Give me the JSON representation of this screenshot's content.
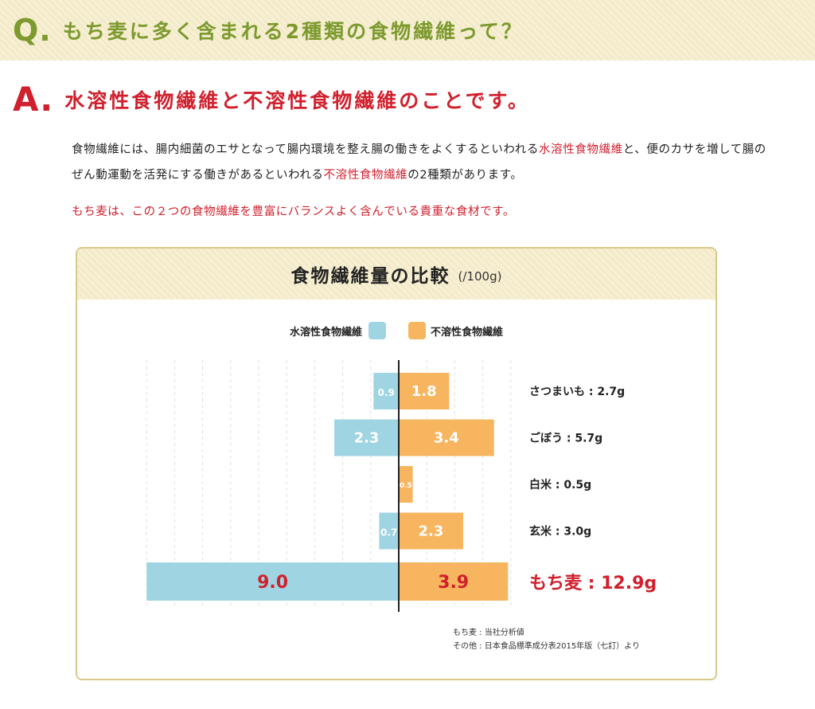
{
  "question": {
    "mark": "Q.",
    "text": "もち麦に多く含まれる2種類の食物繊維って？"
  },
  "answer": {
    "mark": "A.",
    "text": "水溶性食物繊維と不溶性食物繊維のことです。"
  },
  "paragraph1": {
    "part1": "食物繊維には、腸内細菌のエサとなって腸内環境を整え腸の働きをよくするといわれる",
    "highlight1": "水溶性食物繊維",
    "part2": "と、便のカサを増して腸のぜん動運動を活発にする働きがあるといわれる",
    "highlight2": "不溶性食物繊維",
    "part3": "の2種類があります。"
  },
  "paragraph2": "もち麦は、この２つの食物繊維を豊富にバランスよく含んでいる貴重な食材です。",
  "chart_data": {
    "type": "bar",
    "orientation": "horizontal-diverging",
    "title": "食物繊維量の比較",
    "unit": "(/100g)",
    "legend": [
      "水溶性食物繊維",
      "不溶性食物繊維"
    ],
    "legend_placement": "top-center",
    "categories": [
      "さつまいも",
      "ごぼう",
      "白米",
      "玄米",
      "もち麦"
    ],
    "category_labels": [
      "さつまいも : 2.7g",
      "ごぼう : 5.7g",
      "白米 : 0.5g",
      "玄米 : 3.0g",
      "もち麦 : 12.9g"
    ],
    "series": [
      {
        "name": "水溶性食物繊維",
        "values": [
          0.9,
          2.3,
          0,
          0.7,
          9.0
        ],
        "labels": [
          "0.9",
          "2.3",
          "",
          "0.7",
          "9.0"
        ]
      },
      {
        "name": "不溶性食物繊維",
        "values": [
          1.8,
          3.4,
          0.5,
          2.3,
          3.9
        ],
        "labels": [
          "1.8",
          "3.4",
          "0.5",
          "2.3",
          "3.9"
        ]
      }
    ],
    "highlight_category": "もち麦",
    "grid": true
  },
  "colors": {
    "soluble": "#9fd4e2",
    "insoluble": "#f7b55f",
    "accent_red": "#d0202d",
    "green": "#7c9a2e"
  },
  "source": {
    "line1": "もち麦 : 当社分析値",
    "line2": "その他 : 日本食品標準成分表2015年版（七訂）より"
  }
}
